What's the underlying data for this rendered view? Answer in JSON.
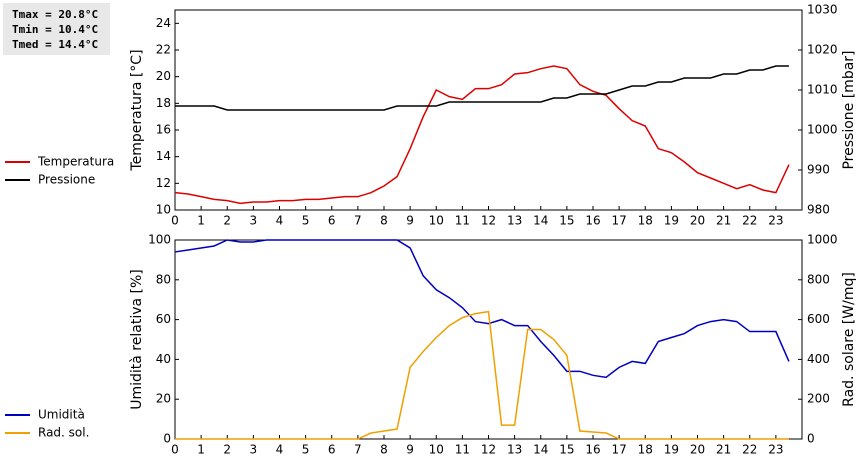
{
  "chart_data": [
    {
      "type": "line",
      "annotations": [
        "Tmax = 20.8°C",
        "Tmin = 10.4°C",
        "Tmed = 14.4°C"
      ],
      "y_label": "Temperatura [°C]",
      "y2_label": "Pressione [mbar]",
      "x": [
        0,
        0.5,
        1,
        1.5,
        2,
        2.5,
        3,
        3.5,
        4,
        4.5,
        5,
        5.5,
        6,
        6.5,
        7,
        7.5,
        8,
        8.5,
        9,
        9.5,
        10,
        10.5,
        11,
        11.5,
        12,
        12.5,
        13,
        13.5,
        14,
        14.5,
        15,
        15.5,
        16,
        16.5,
        17,
        17.5,
        18,
        18.5,
        19,
        19.5,
        20,
        20.5,
        21,
        21.5,
        22,
        22.5,
        23,
        23.5
      ],
      "xlim": [
        0,
        24
      ],
      "xticks": [
        0,
        1,
        2,
        3,
        4,
        5,
        6,
        7,
        8,
        9,
        10,
        11,
        12,
        13,
        14,
        15,
        16,
        17,
        18,
        19,
        20,
        21,
        22,
        23
      ],
      "ylim": [
        10,
        25
      ],
      "yticks": [
        10,
        12,
        14,
        16,
        18,
        20,
        22,
        24
      ],
      "y2lim": [
        980,
        1030
      ],
      "y2ticks": [
        980,
        990,
        1000,
        1010,
        1020,
        1030
      ],
      "series": [
        {
          "name": "Temperatura",
          "color": "#dd0000",
          "values": [
            11.3,
            11.2,
            11.0,
            10.8,
            10.7,
            10.5,
            10.6,
            10.6,
            10.7,
            10.7,
            10.8,
            10.8,
            10.9,
            11.0,
            11.0,
            11.3,
            11.8,
            12.5,
            14.6,
            17.0,
            19.0,
            18.5,
            18.3,
            19.1,
            19.1,
            19.4,
            20.2,
            20.3,
            20.6,
            20.8,
            20.6,
            19.4,
            18.9,
            18.6,
            17.6,
            16.7,
            16.3,
            14.6,
            14.3,
            13.6,
            12.8,
            12.4,
            12.0,
            11.6,
            11.9,
            11.5,
            11.3,
            13.4
          ]
        },
        {
          "name": "Pressione",
          "color": "#000000",
          "axis": "y2",
          "values": [
            1006,
            1006,
            1006,
            1006,
            1005,
            1005,
            1005,
            1005,
            1005,
            1005,
            1005,
            1005,
            1005,
            1005,
            1005,
            1005,
            1005,
            1006,
            1006,
            1006,
            1006,
            1007,
            1007,
            1007,
            1007,
            1007,
            1007,
            1007,
            1007,
            1008,
            1008,
            1009,
            1009,
            1009,
            1010,
            1011,
            1011,
            1012,
            1012,
            1013,
            1013,
            1013,
            1014,
            1014,
            1015,
            1015,
            1016,
            1016
          ]
        }
      ]
    },
    {
      "type": "line",
      "y_label": "Umidità relativa [%]",
      "y2_label": "Rad. solare [W/mq]",
      "x": [
        0,
        0.5,
        1,
        1.5,
        2,
        2.5,
        3,
        3.5,
        4,
        4.5,
        5,
        5.5,
        6,
        6.5,
        7,
        7.5,
        8,
        8.5,
        9,
        9.5,
        10,
        10.5,
        11,
        11.5,
        12,
        12.5,
        13,
        13.5,
        14,
        14.5,
        15,
        15.5,
        16,
        16.5,
        17,
        17.5,
        18,
        18.5,
        19,
        19.5,
        20,
        20.5,
        21,
        21.5,
        22,
        22.5,
        23,
        23.5
      ],
      "xlim": [
        0,
        24
      ],
      "xticks": [
        0,
        1,
        2,
        3,
        4,
        5,
        6,
        7,
        8,
        9,
        10,
        11,
        12,
        13,
        14,
        15,
        16,
        17,
        18,
        19,
        20,
        21,
        22,
        23
      ],
      "ylim": [
        0,
        100
      ],
      "yticks": [
        0,
        20,
        40,
        60,
        80,
        100
      ],
      "y2lim": [
        0,
        1000
      ],
      "y2ticks": [
        0,
        200,
        400,
        600,
        800,
        1000
      ],
      "series": [
        {
          "name": "Umidità",
          "color": "#0000c0",
          "values": [
            94,
            95,
            96,
            97,
            100,
            99,
            99,
            100,
            100,
            100,
            100,
            100,
            100,
            100,
            100,
            100,
            100,
            100,
            96,
            82,
            75,
            71,
            66,
            59,
            58,
            60,
            57,
            57,
            49,
            42,
            34,
            34,
            32,
            31,
            36,
            39,
            38,
            49,
            51,
            53,
            57,
            59,
            60,
            59,
            54,
            54,
            54,
            39
          ]
        },
        {
          "name": "Rad. sol.",
          "color": "#f0a000",
          "axis": "y2",
          "values": [
            0,
            0,
            0,
            0,
            0,
            0,
            0,
            0,
            0,
            0,
            0,
            0,
            0,
            0,
            0,
            30,
            40,
            50,
            360,
            440,
            510,
            570,
            610,
            630,
            640,
            70,
            70,
            550,
            550,
            500,
            420,
            40,
            35,
            30,
            0,
            0,
            0,
            0,
            0,
            0,
            0,
            0,
            0,
            0,
            0,
            0,
            0,
            0
          ]
        }
      ]
    }
  ]
}
